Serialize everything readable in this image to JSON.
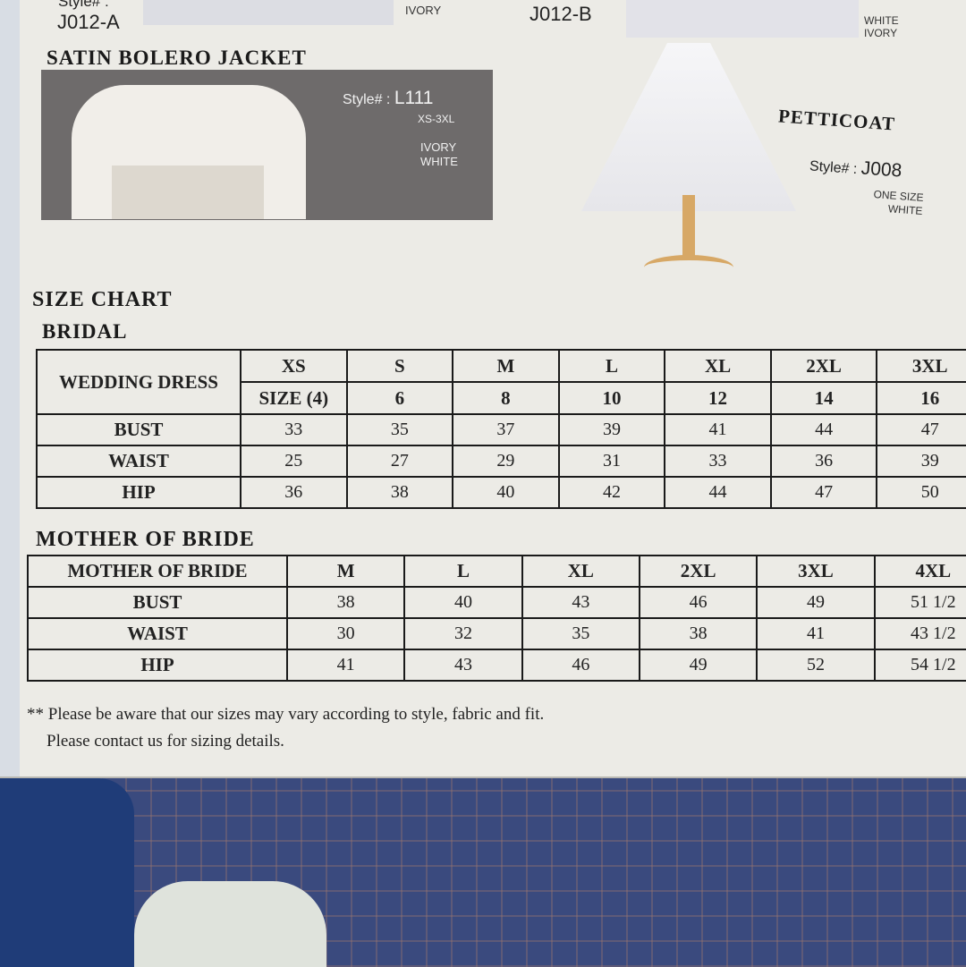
{
  "top_items": {
    "left_style_label": "Style# :",
    "left_style": "J012-A",
    "left_colors": "IVORY",
    "right_style": "J012-B",
    "right_colors": [
      "WHITE",
      "IVORY"
    ]
  },
  "bolero": {
    "title": "SATIN BOLERO JACKET",
    "style_label": "Style# :",
    "style": "L111",
    "sizes": "XS-3XL",
    "colors": [
      "IVORY",
      "WHITE"
    ]
  },
  "petticoat": {
    "title": "PETTICOAT",
    "style_label": "Style# :",
    "style": "J008",
    "sizes": "ONE SIZE",
    "colors": [
      "WHITE"
    ]
  },
  "size_chart": {
    "title": "SIZE CHART",
    "bridal": {
      "title": "BRIDAL",
      "header_label": "WEDDING DRESS",
      "sizes": [
        "XS",
        "S",
        "M",
        "L",
        "XL",
        "2XL",
        "3XL"
      ],
      "numeric_sizes": [
        "SIZE (4)",
        "6",
        "8",
        "10",
        "12",
        "14",
        "16"
      ],
      "rows": [
        {
          "label": "BUST",
          "values": [
            "33",
            "35",
            "37",
            "39",
            "41",
            "44",
            "47"
          ]
        },
        {
          "label": "WAIST",
          "values": [
            "25",
            "27",
            "29",
            "31",
            "33",
            "36",
            "39"
          ]
        },
        {
          "label": "HIP",
          "values": [
            "36",
            "38",
            "40",
            "42",
            "44",
            "47",
            "50"
          ]
        }
      ]
    },
    "mother": {
      "title": "MOTHER OF BRIDE",
      "header_label": "MOTHER OF BRIDE",
      "sizes": [
        "M",
        "L",
        "XL",
        "2XL",
        "3XL",
        "4XL"
      ],
      "rows": [
        {
          "label": "BUST",
          "values": [
            "38",
            "40",
            "43",
            "46",
            "49",
            "51 1/2"
          ]
        },
        {
          "label": "WAIST",
          "values": [
            "30",
            "32",
            "35",
            "38",
            "41",
            "43 1/2"
          ]
        },
        {
          "label": "HIP",
          "values": [
            "41",
            "43",
            "46",
            "49",
            "52",
            "54 1/2"
          ]
        }
      ]
    }
  },
  "notes": [
    "** Please be aware that our sizes may vary according to style, fabric and fit.",
    "Please contact us for sizing details."
  ]
}
